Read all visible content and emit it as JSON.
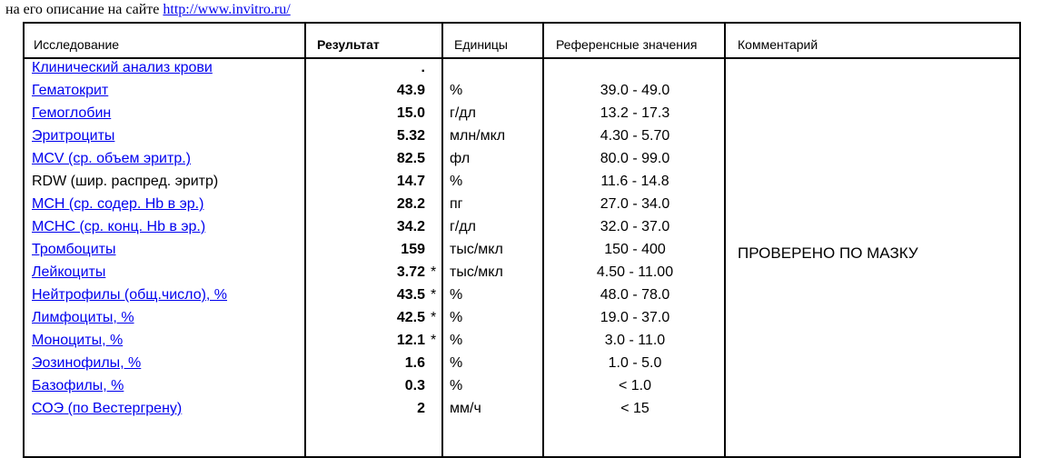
{
  "intro": {
    "text": "на его описание на сайте ",
    "link": "http://www.invitro.ru/"
  },
  "headers": {
    "test": "Исследование",
    "result": "Результат",
    "units": "Единицы",
    "reference": "Референсные значения",
    "comment": "Комментарий"
  },
  "rows": [
    {
      "name": "Клинический анализ крови",
      "link": true,
      "value": ".",
      "flag": "",
      "unit": "",
      "ref": ""
    },
    {
      "name": "Гематокрит",
      "link": true,
      "value": "43.9",
      "flag": "",
      "unit": "%",
      "ref": "39.0 - 49.0"
    },
    {
      "name": "Гемоглобин",
      "link": true,
      "value": "15.0",
      "flag": "",
      "unit": "г/дл",
      "ref": "13.2 - 17.3"
    },
    {
      "name": "Эритроциты",
      "link": true,
      "value": "5.32",
      "flag": "",
      "unit": "млн/мкл",
      "ref": "4.30 - 5.70"
    },
    {
      "name": "MCV (ср. объем эритр.)",
      "link": true,
      "value": "82.5",
      "flag": "",
      "unit": "фл",
      "ref": "80.0 - 99.0"
    },
    {
      "name": "RDW (шир. распред. эритр)",
      "link": false,
      "value": "14.7",
      "flag": "",
      "unit": "%",
      "ref": "11.6 - 14.8"
    },
    {
      "name": "MCH (ср. содер. Hb в эр.)",
      "link": true,
      "value": "28.2",
      "flag": "",
      "unit": "пг",
      "ref": "27.0 - 34.0"
    },
    {
      "name": "MCHC (ср. конц. Hb в эр.)",
      "link": true,
      "value": "34.2",
      "flag": "",
      "unit": "г/дл",
      "ref": "32.0 - 37.0"
    },
    {
      "name": "Тромбоциты",
      "link": true,
      "value": "159",
      "flag": "",
      "unit": "тыс/мкл",
      "ref": "150 - 400"
    },
    {
      "name": "Лейкоциты",
      "link": true,
      "value": "3.72",
      "flag": "*",
      "unit": "тыс/мкл",
      "ref": "4.50 - 11.00"
    },
    {
      "name": "Нейтрофилы (общ.число), %",
      "link": true,
      "value": "43.5",
      "flag": "*",
      "unit": "%",
      "ref": "48.0 - 78.0"
    },
    {
      "name": "Лимфоциты, %",
      "link": true,
      "value": "42.5",
      "flag": "*",
      "unit": "%",
      "ref": "19.0 - 37.0"
    },
    {
      "name": "Моноциты, %",
      "link": true,
      "value": "12.1",
      "flag": "*",
      "unit": "%",
      "ref": "3.0 - 11.0"
    },
    {
      "name": "Эозинофилы, %",
      "link": true,
      "value": "1.6",
      "flag": "",
      "unit": "%",
      "ref": "1.0 - 5.0"
    },
    {
      "name": "Базофилы, %",
      "link": true,
      "value": "0.3",
      "flag": "",
      "unit": "%",
      "ref": "< 1.0"
    },
    {
      "name": "СОЭ (по Вестергрену)",
      "link": true,
      "value": "2",
      "flag": "",
      "unit": "мм/ч",
      "ref": "< 15"
    }
  ],
  "comment": "ПРОВЕРЕНО ПО МАЗКУ"
}
